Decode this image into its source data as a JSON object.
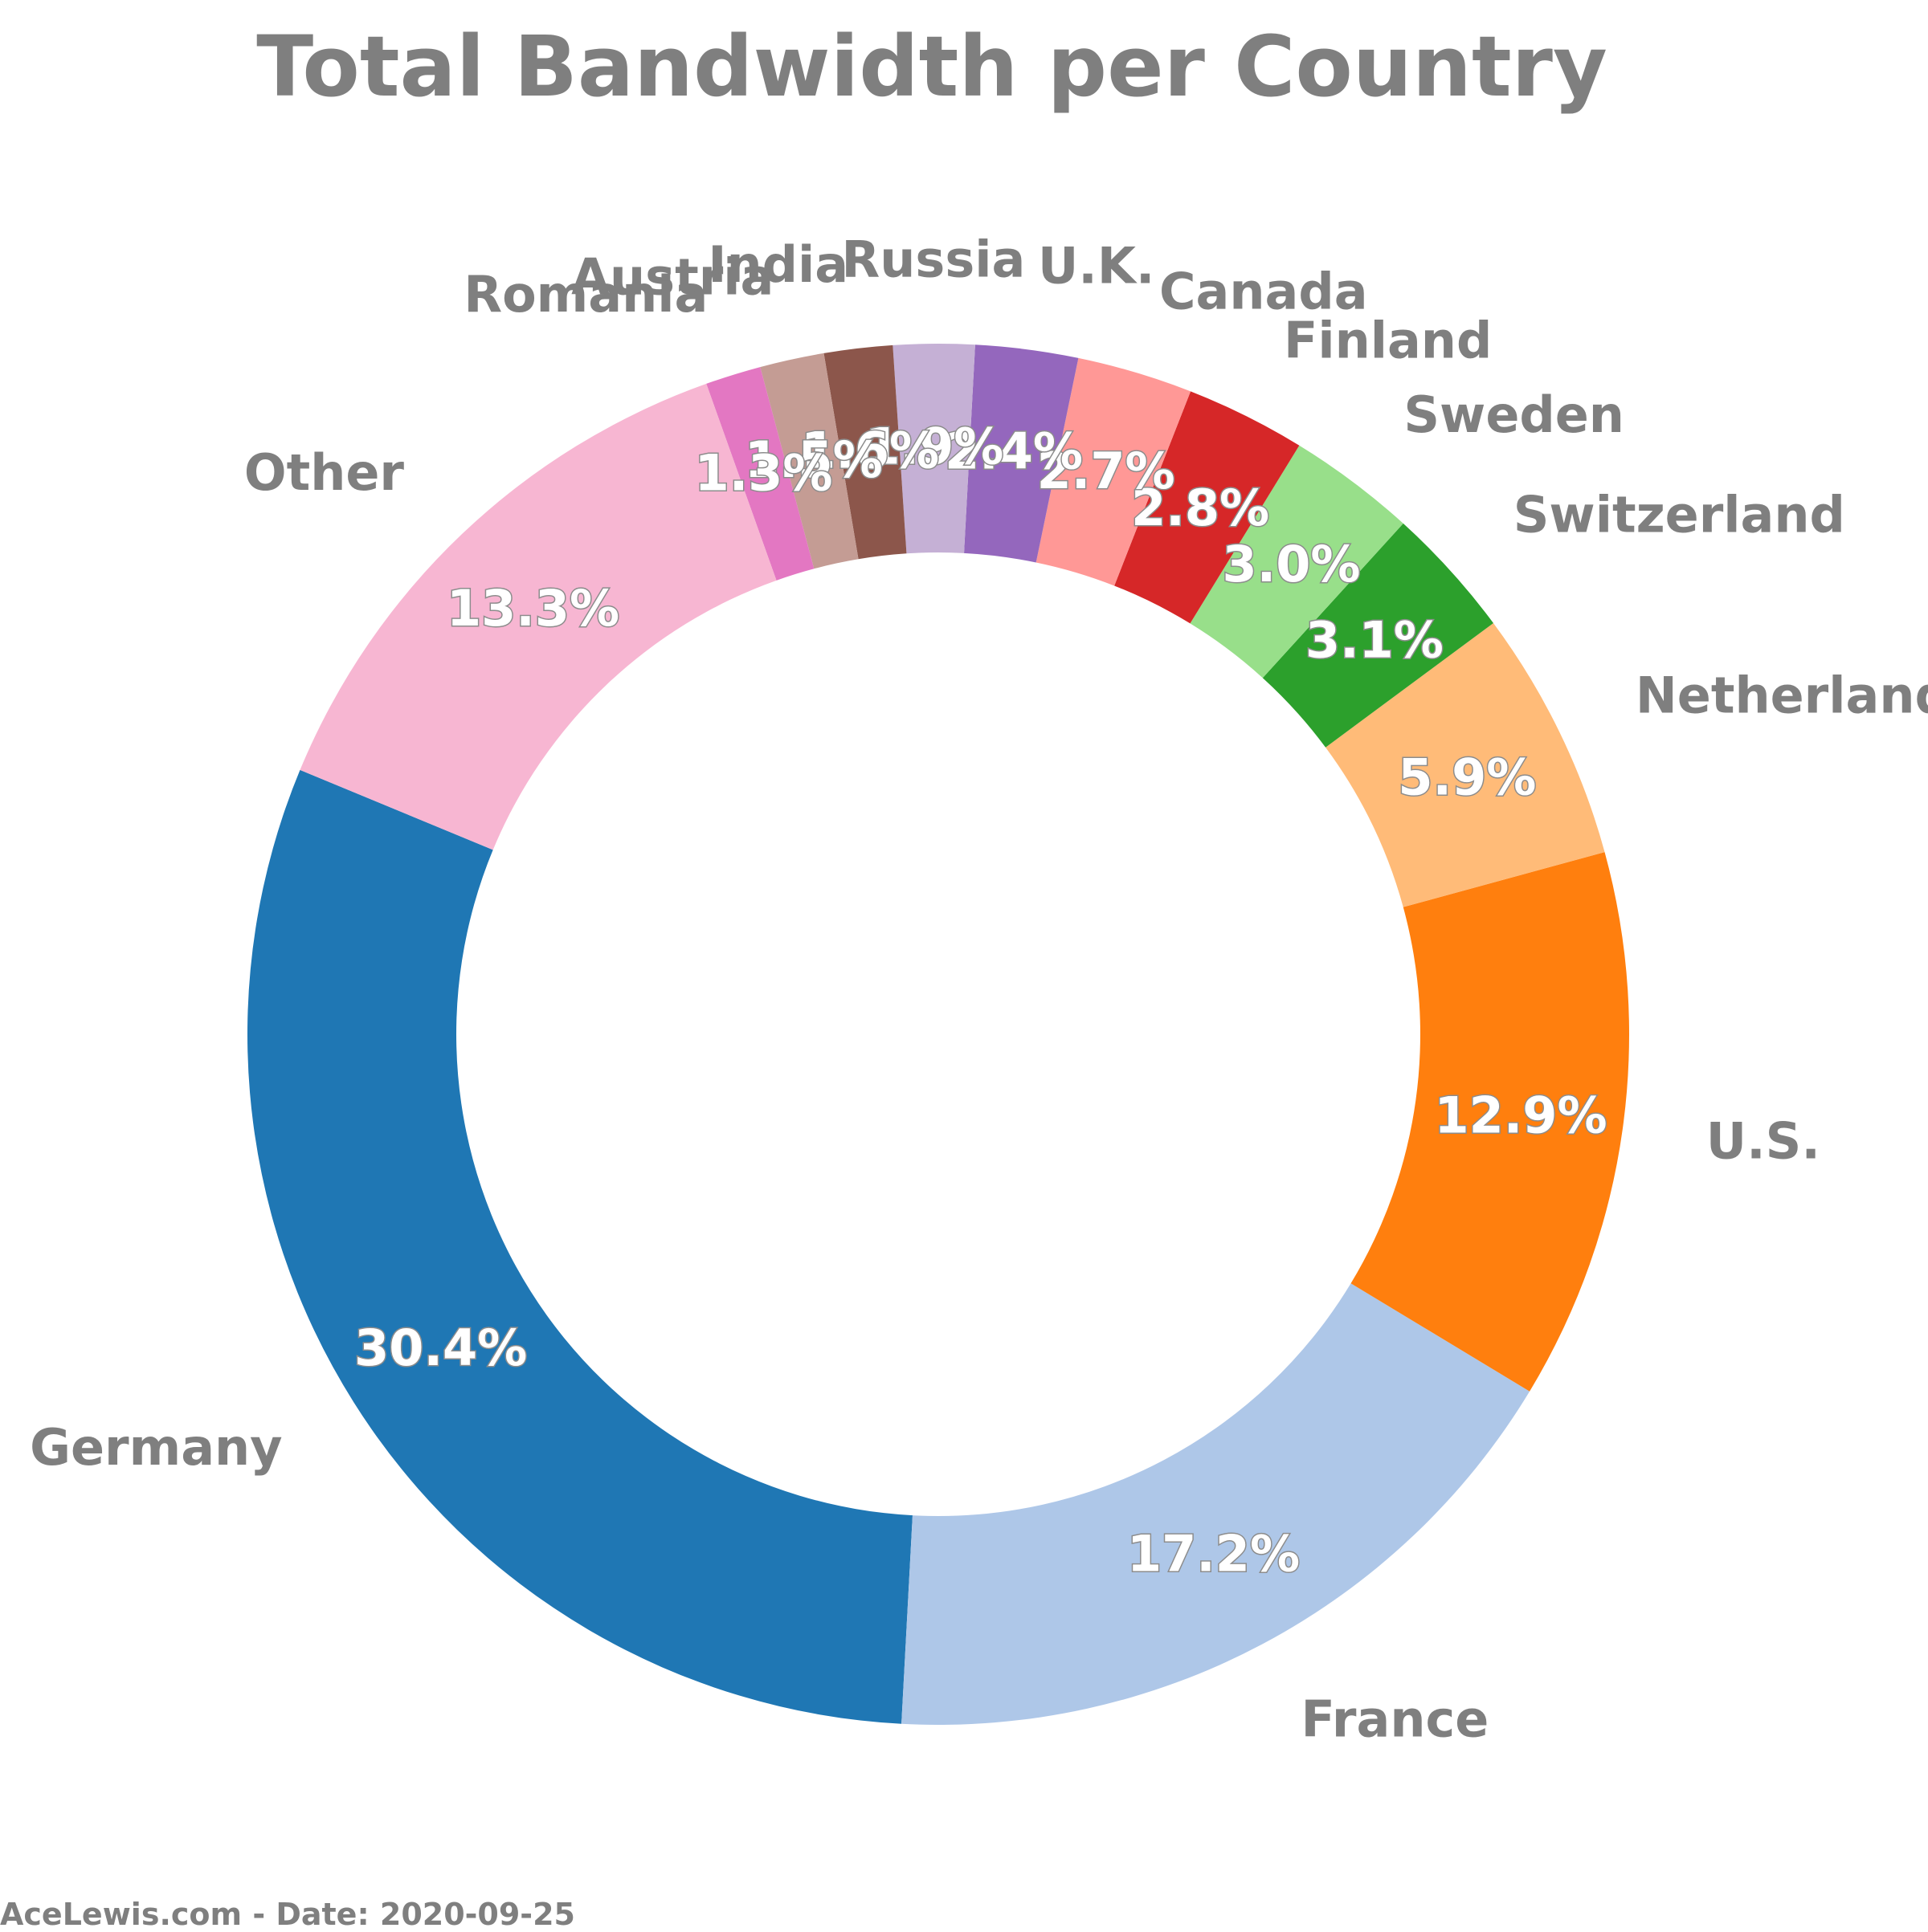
{
  "chart_data": {
    "type": "pie",
    "title": "Total Bandwidth per Country",
    "donut": true,
    "start_angle_deg": 157.5,
    "direction": "counterclockwise",
    "slices": [
      {
        "label": "Germany",
        "value": 30.4,
        "pct_text": "30.4%",
        "color": "#1f77b4"
      },
      {
        "label": "France",
        "value": 17.2,
        "pct_text": "17.2%",
        "color": "#aec7e8"
      },
      {
        "label": "U.S.",
        "value": 12.9,
        "pct_text": "12.9%",
        "color": "#ff7f0e"
      },
      {
        "label": "Netherlands",
        "value": 5.9,
        "pct_text": "5.9%",
        "color": "#ffbb78"
      },
      {
        "label": "Switzerland",
        "value": 3.1,
        "pct_text": "3.1%",
        "color": "#2ca02c"
      },
      {
        "label": "Sweden",
        "value": 3.0,
        "pct_text": "3.0%",
        "color": "#98df8a"
      },
      {
        "label": "Finland",
        "value": 2.8,
        "pct_text": "2.8%",
        "color": "#d62728"
      },
      {
        "label": "Canada",
        "value": 2.7,
        "pct_text": "2.7%",
        "color": "#ff9896"
      },
      {
        "label": "U.K.",
        "value": 2.4,
        "pct_text": "2.4%",
        "color": "#9467bd"
      },
      {
        "label": "Russia",
        "value": 1.9,
        "pct_text": "1.9%",
        "color": "#c5b0d5"
      },
      {
        "label": "India",
        "value": 1.6,
        "pct_text": "1.6%",
        "color": "#8c564b"
      },
      {
        "label": "Austria",
        "value": 1.5,
        "pct_text": "1.5%",
        "color": "#c49c94"
      },
      {
        "label": "Romania",
        "value": 1.3,
        "pct_text": "1.3%",
        "color": "#e377c2"
      },
      {
        "label": "Other",
        "value": 13.3,
        "pct_text": "13.3%",
        "color": "#f7b6d2"
      }
    ]
  },
  "footer": "AceLewis.com - Date: 2020-09-25"
}
